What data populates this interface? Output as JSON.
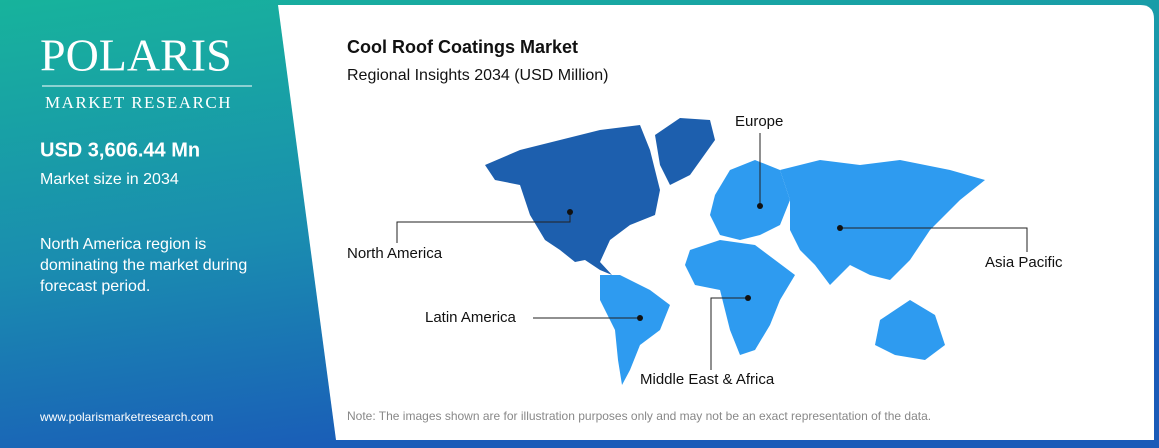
{
  "logo": {
    "name": "POLARIS",
    "tagline": "MARKET RESEARCH"
  },
  "summary": {
    "market_size": "USD 3,606.44 Mn",
    "market_size_label": "Market size in 2034",
    "insight": "North America region is dominating the market during forecast period."
  },
  "website": "www.polarismarketresearch.com",
  "header": {
    "title": "Cool Roof Coatings Market",
    "subtitle": "Regional Insights 2034 (USD Million)"
  },
  "regions": [
    "Europe",
    "North America",
    "Asia Pacific",
    "Latin America",
    "Middle East & Africa"
  ],
  "note": "Note: The images shown are for illustration purposes only and may not be an exact representation of the data."
}
